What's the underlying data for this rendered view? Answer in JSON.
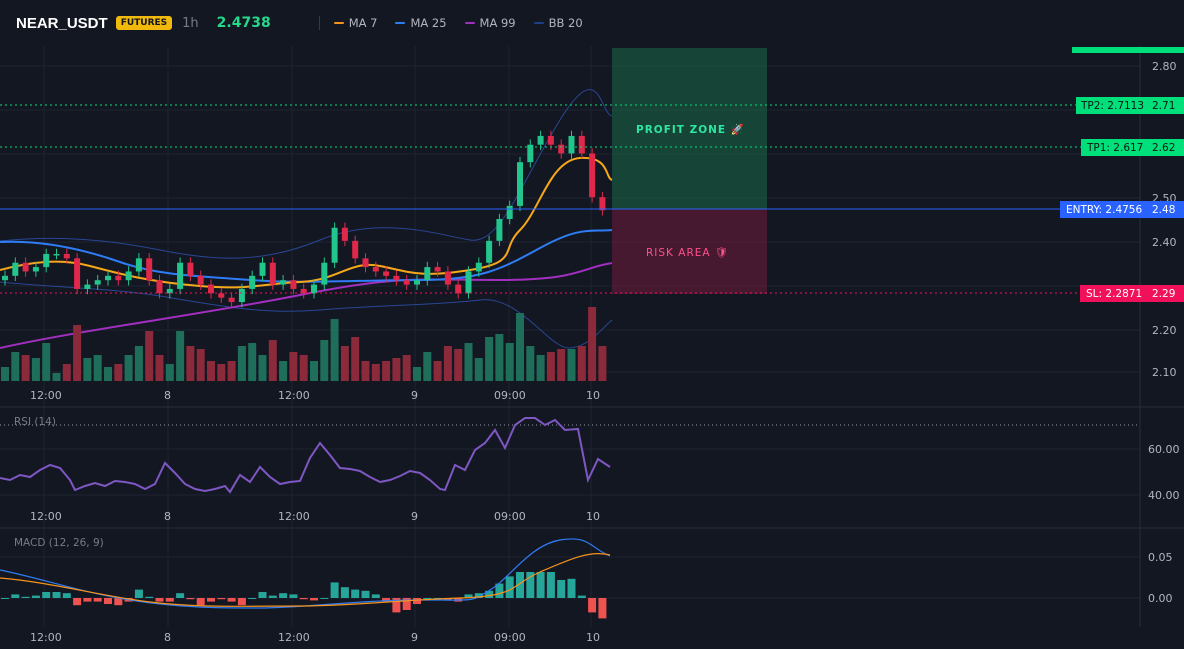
{
  "header": {
    "symbol": "NEAR_USDT",
    "badge": "FUTURES",
    "timeframe": "1h",
    "price": "2.4738",
    "legend": [
      {
        "label": "MA 7",
        "color": "#f7931a"
      },
      {
        "label": "MA 25",
        "color": "#2f7df6"
      },
      {
        "label": "MA 99",
        "color": "#a22fc0"
      },
      {
        "label": "BB 20",
        "color": "#1e3f86"
      }
    ]
  },
  "time_axis": [
    "12:00",
    "8",
    "12:00",
    "9",
    "09:00",
    "10"
  ],
  "price_axis": {
    "ticks": [
      "2.80",
      "2.71",
      "2.62",
      "2.50",
      "2.48",
      "2.40",
      "2.29",
      "2.20",
      "2.10"
    ],
    "tp2_label": "TP2: 2.7113",
    "tp2_value": "2.71",
    "tp1_label": "TP1: 2.617",
    "tp1_value": "2.62",
    "entry_label": "ENTRY: 2.4756",
    "entry_value": "2.48",
    "sl_label": "SL: 2.2871",
    "sl_value": "2.29"
  },
  "zones": {
    "profit": "PROFIT ZONE 🚀",
    "risk": "RISK AREA 🛡"
  },
  "rsi": {
    "label": "RSI (14)",
    "ticks": [
      "60.00",
      "40.00"
    ]
  },
  "macd": {
    "label": "MACD (12, 26, 9)",
    "ticks": [
      "0.05",
      "0.00"
    ]
  },
  "colors": {
    "up": "#22c58b",
    "down": "#e0294a",
    "entry": "#2962ff",
    "tp": "#00e07a",
    "sl": "#f0115a",
    "rsi": "#7e57c2"
  },
  "chart_data": {
    "type": "candlestick",
    "levels": {
      "tp2": 2.7113,
      "tp1": 2.617,
      "entry": 2.4756,
      "sl": 2.2871
    },
    "ohlc_close": [
      2.32,
      2.35,
      2.33,
      2.34,
      2.37,
      2.37,
      2.36,
      2.29,
      2.3,
      2.31,
      2.32,
      2.31,
      2.33,
      2.36,
      2.31,
      2.28,
      2.29,
      2.35,
      2.32,
      2.3,
      2.28,
      2.27,
      2.26,
      2.29,
      2.32,
      2.35,
      2.3,
      2.31,
      2.29,
      2.28,
      2.3,
      2.35,
      2.43,
      2.4,
      2.36,
      2.34,
      2.33,
      2.32,
      2.31,
      2.3,
      2.31,
      2.34,
      2.33,
      2.3,
      2.28,
      2.33,
      2.35,
      2.4,
      2.45,
      2.48,
      2.58,
      2.62,
      2.64,
      2.62,
      2.6,
      2.64,
      2.6,
      2.5,
      2.47
    ]
  }
}
